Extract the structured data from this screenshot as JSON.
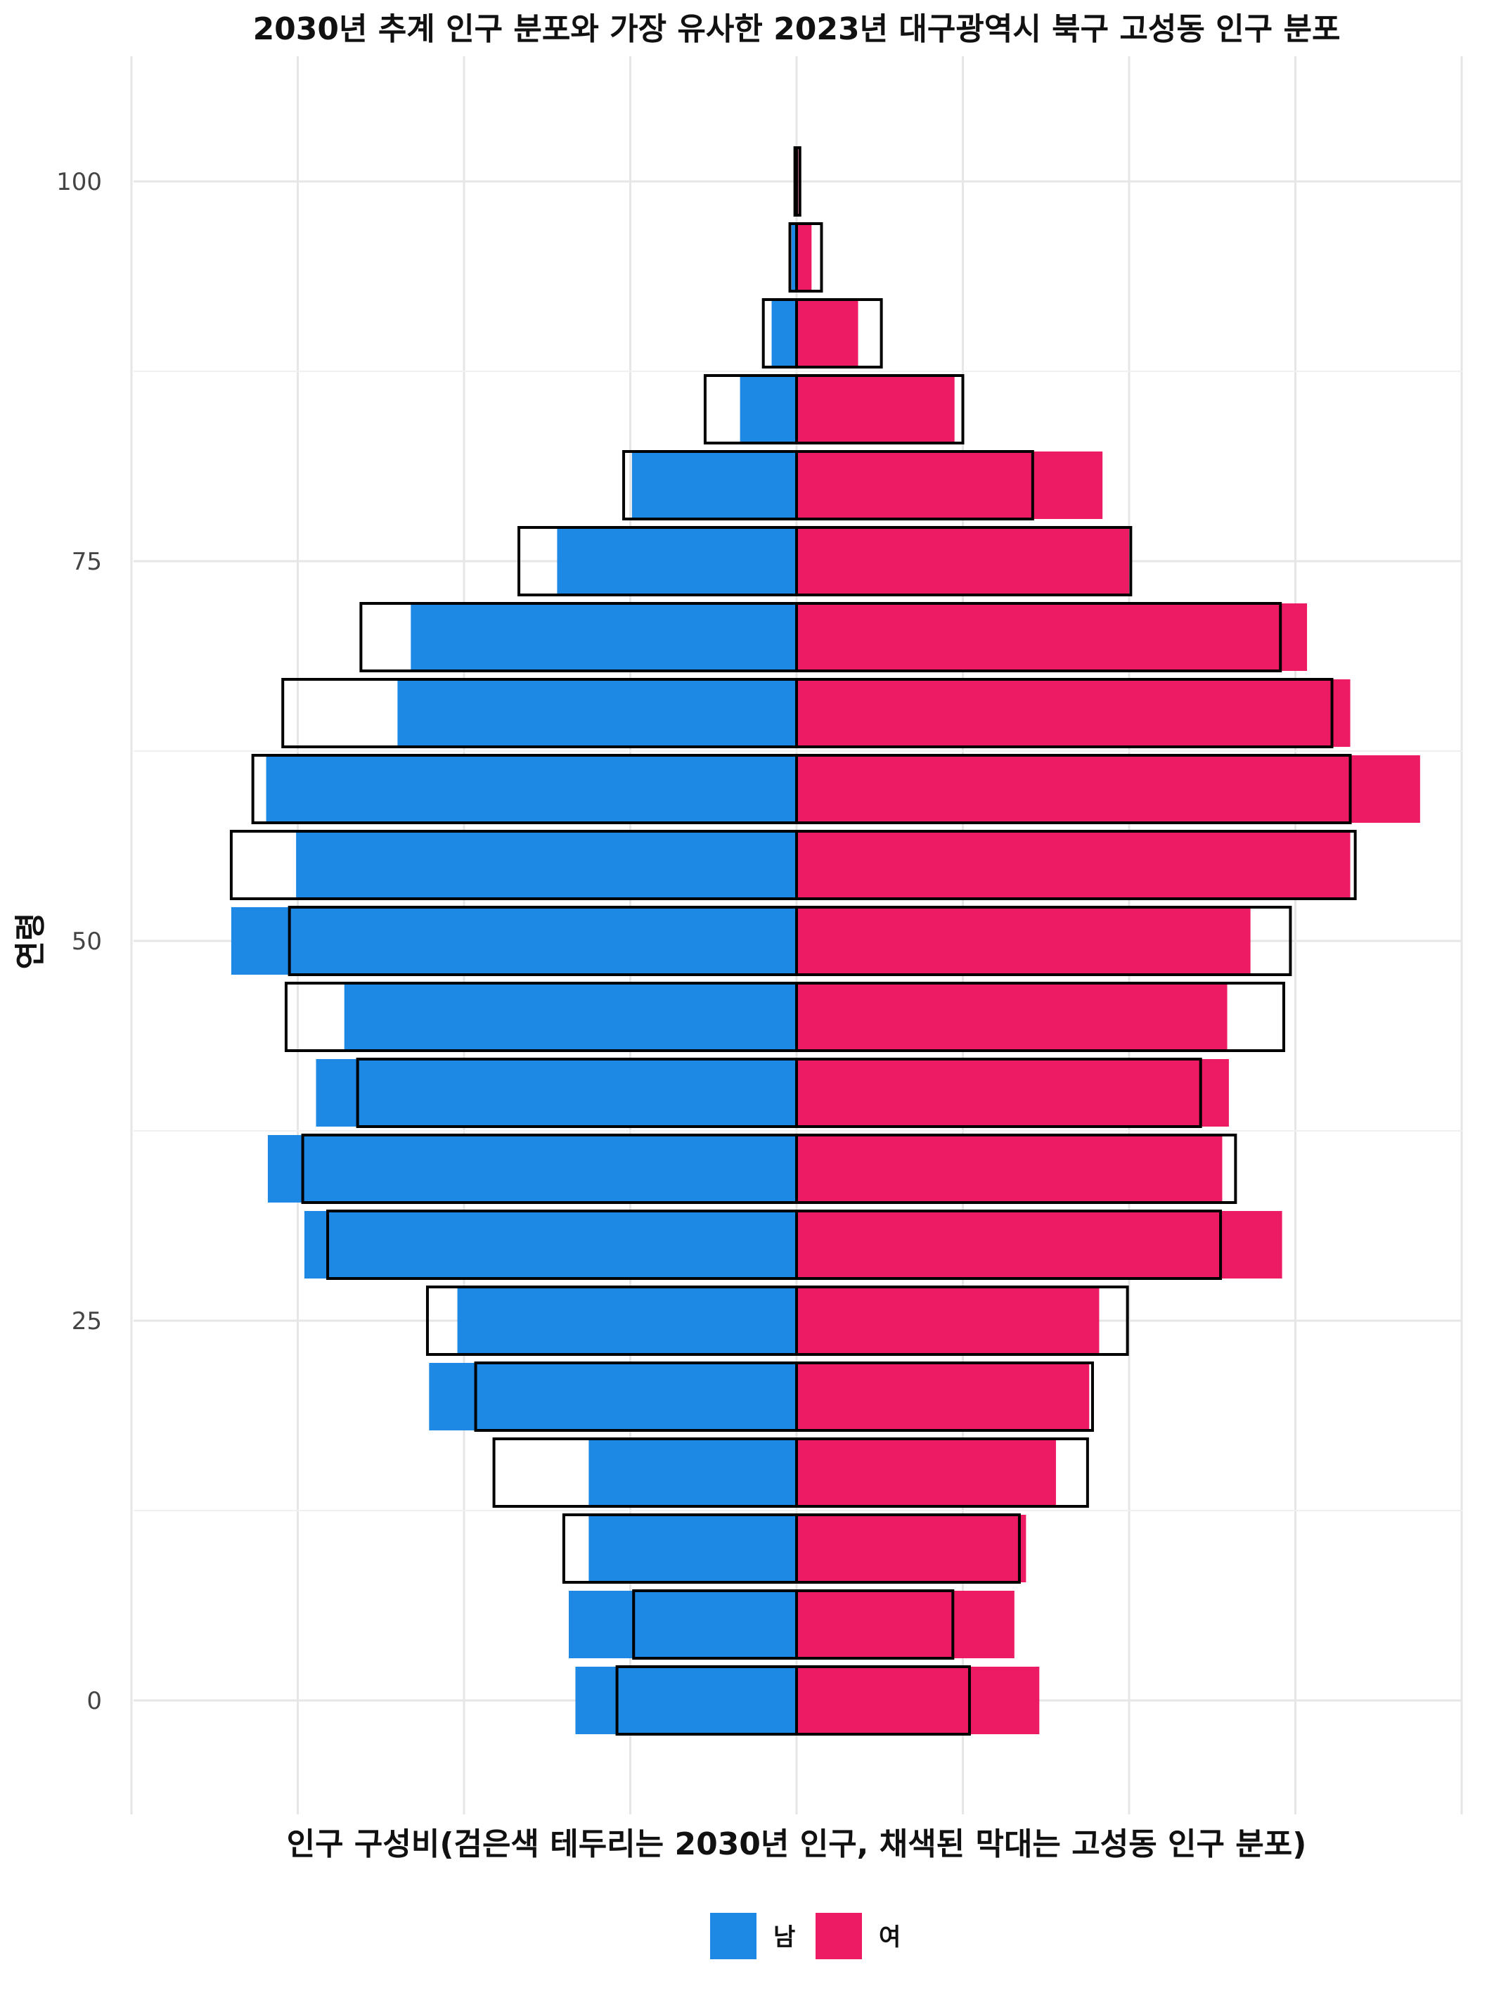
{
  "chart_data": {
    "type": "bar",
    "subtype": "population-pyramid",
    "title": "2030년 추계 인구 분포와 가장 유사한 2023년 대구광역시 북구 고성동 인구 분포",
    "xlabel": "인구 구성비(검은색 테두리는 2030년 인구, 채색된 막대는 고성동 인구 분포)",
    "ylabel": "연령",
    "x_tick_labels_shown": false,
    "x_grid_lines": [
      -4,
      -3,
      -2,
      -1,
      0,
      1,
      2,
      3,
      4
    ],
    "xlim": [
      -4,
      4
    ],
    "ylim": [
      -7,
      107
    ],
    "y_ticks": [
      0,
      25,
      50,
      75,
      100
    ],
    "age_groups": [
      0,
      5,
      10,
      15,
      20,
      25,
      30,
      35,
      40,
      45,
      50,
      55,
      60,
      65,
      70,
      75,
      80,
      85,
      90,
      95,
      100
    ],
    "series": [
      {
        "name": "남",
        "role": "fill",
        "color": "#1E88E5",
        "values": [
          -1.33,
          -1.37,
          -1.25,
          -1.25,
          -2.21,
          -2.04,
          -2.96,
          -3.18,
          -2.89,
          -2.72,
          -3.4,
          -3.01,
          -3.19,
          -2.4,
          -2.32,
          -1.44,
          -0.99,
          -0.34,
          -0.15,
          -0.03,
          0
        ]
      },
      {
        "name": "여",
        "role": "fill",
        "color": "#EC1B63",
        "values": [
          1.46,
          1.31,
          1.38,
          1.56,
          1.76,
          1.82,
          2.92,
          2.56,
          2.6,
          2.59,
          2.73,
          3.33,
          3.75,
          3.33,
          3.07,
          2.0,
          1.84,
          0.95,
          0.37,
          0.09,
          0.01
        ]
      },
      {
        "name": "남 (2030년 인구)",
        "role": "outline",
        "color": "#000000",
        "values": [
          -1.08,
          -0.98,
          -1.4,
          -1.82,
          -1.93,
          -2.22,
          -2.82,
          -2.97,
          -2.64,
          -3.07,
          -3.05,
          -3.4,
          -3.27,
          -3.09,
          -2.62,
          -1.67,
          -1.04,
          -0.55,
          -0.2,
          -0.04,
          -0.01
        ]
      },
      {
        "name": "여 (2030년 인구)",
        "role": "outline",
        "color": "#000000",
        "values": [
          1.04,
          0.94,
          1.34,
          1.75,
          1.78,
          1.99,
          2.55,
          2.64,
          2.43,
          2.93,
          2.97,
          3.36,
          3.33,
          3.22,
          2.91,
          2.01,
          1.42,
          1.0,
          0.51,
          0.15,
          0.02
        ]
      }
    ],
    "legend": {
      "position": "bottom",
      "entries": [
        {
          "label": "남",
          "color": "#1E88E5"
        },
        {
          "label": "여",
          "color": "#EC1B63"
        }
      ]
    },
    "grid": true
  }
}
